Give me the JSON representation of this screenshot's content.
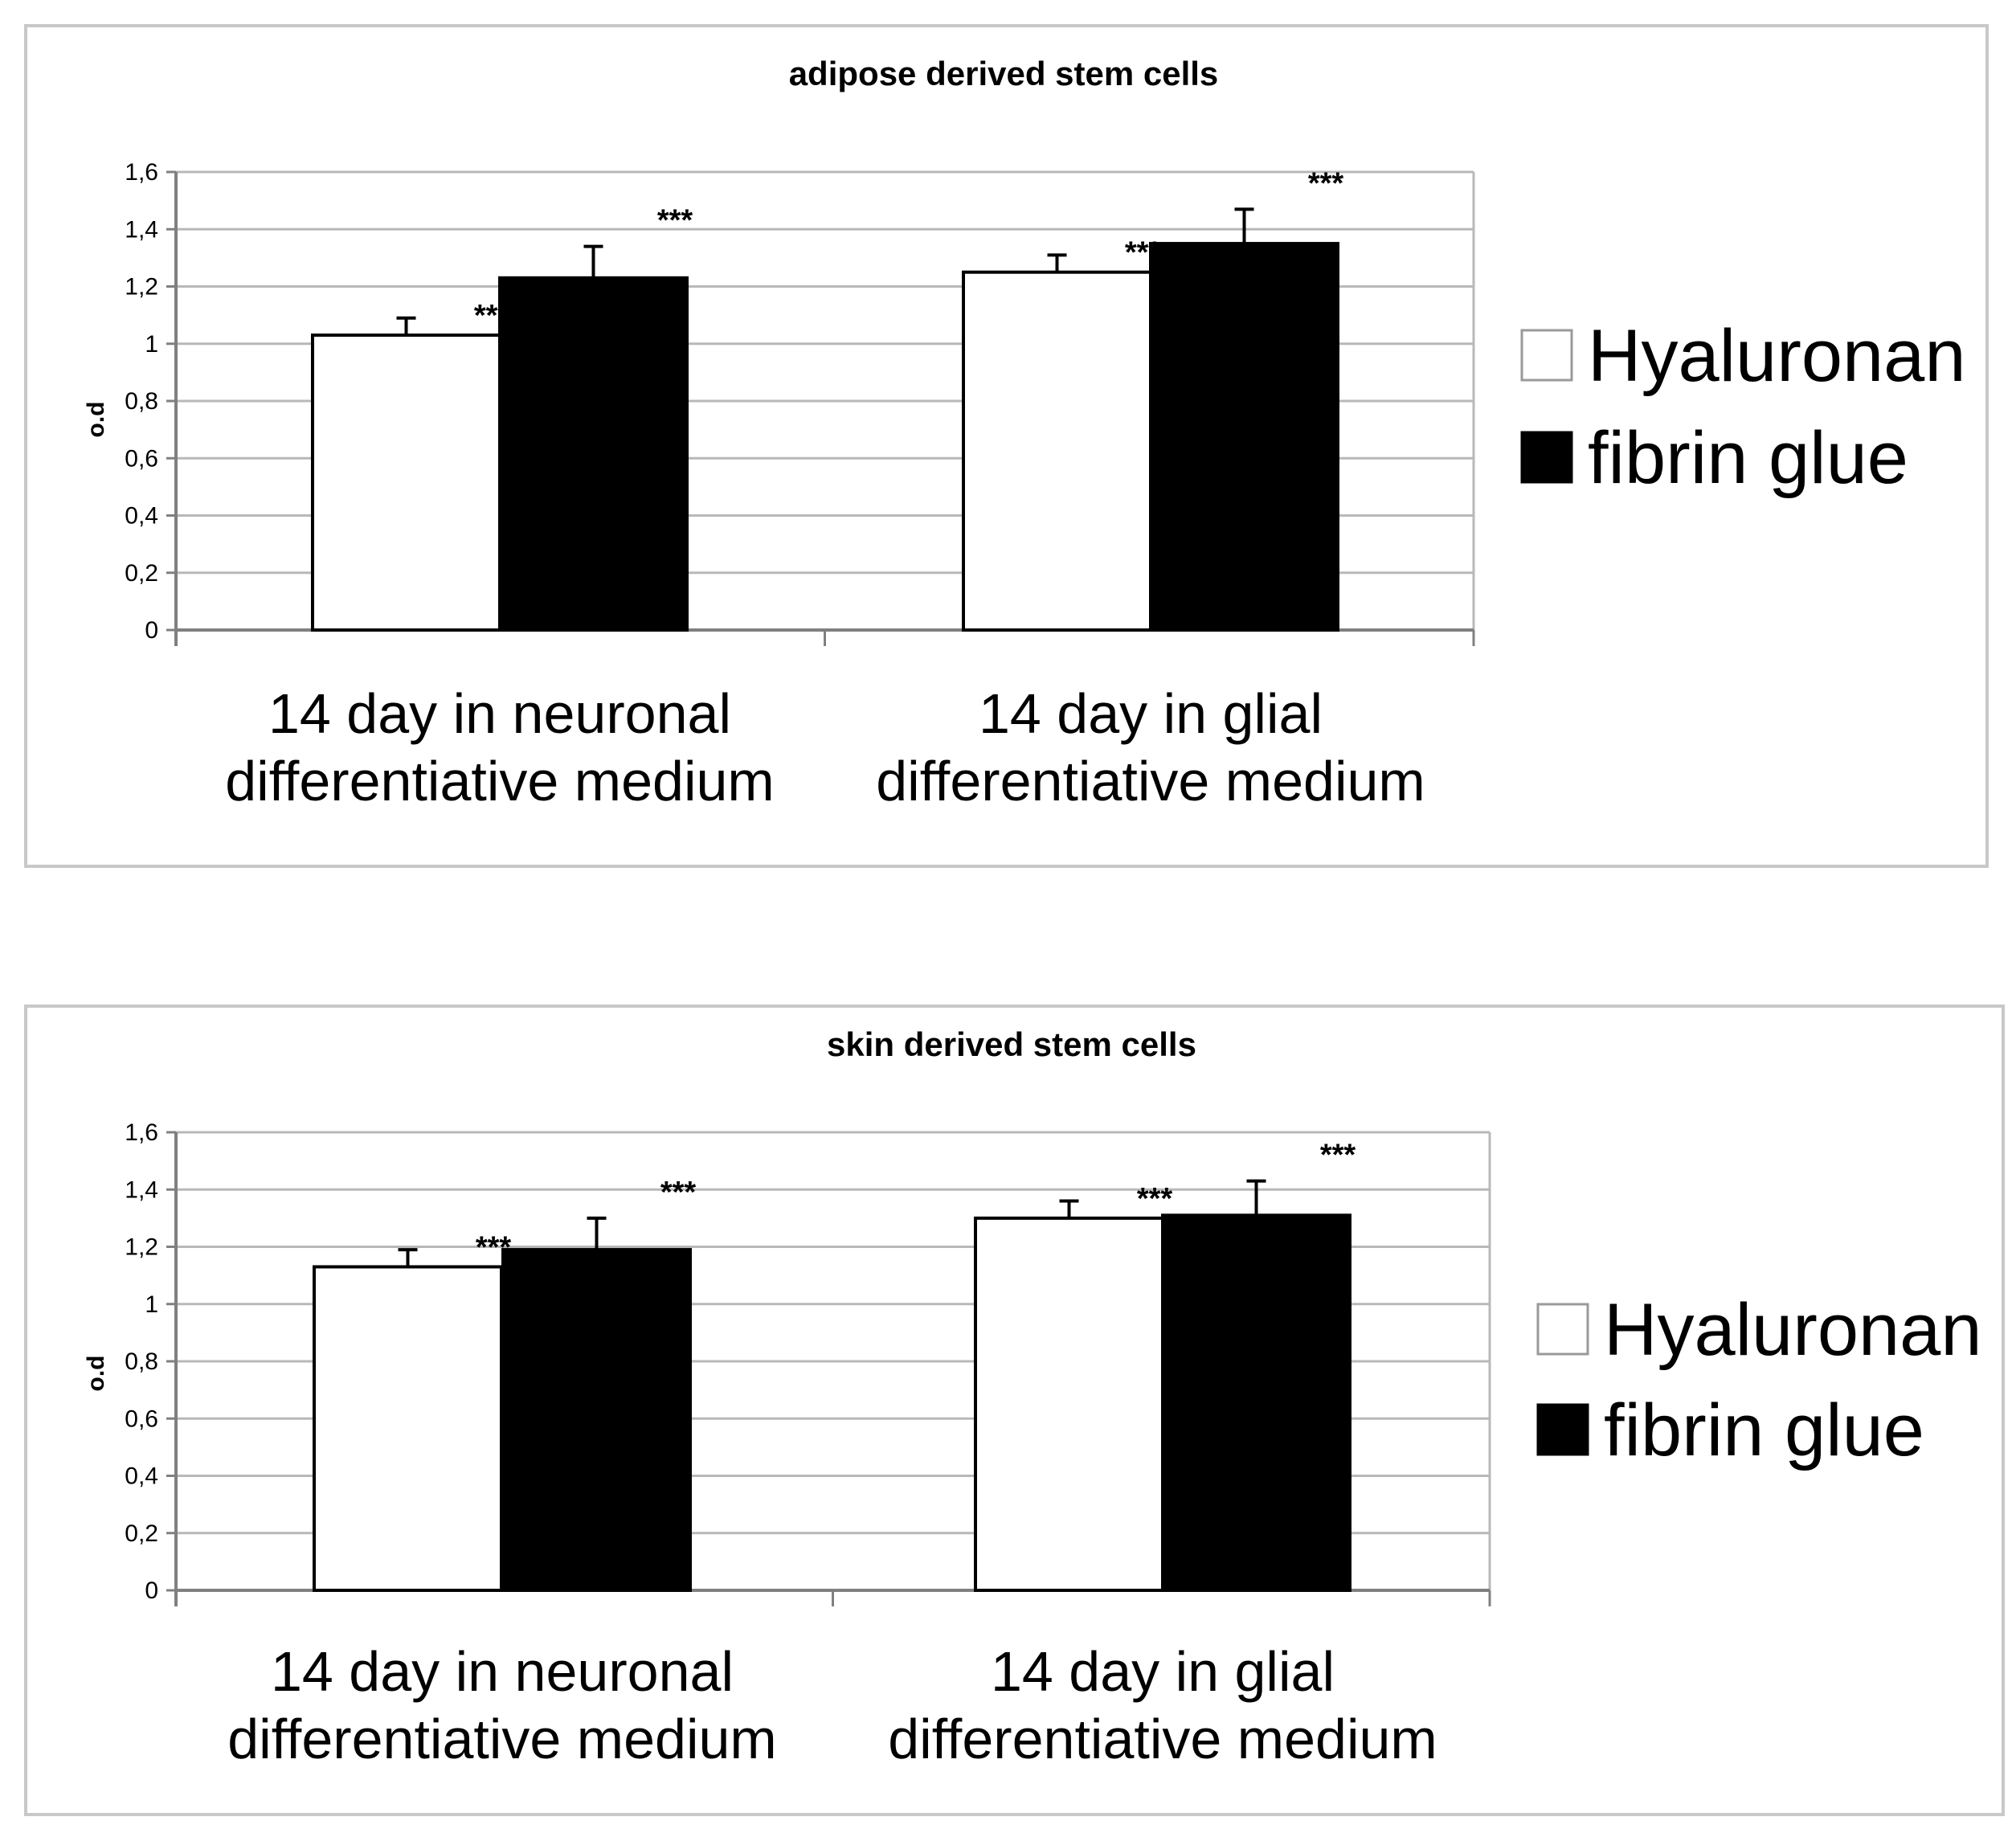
{
  "chart_data": [
    {
      "type": "bar",
      "title": "adipose derived stem cells",
      "ylabel": "o.d",
      "ylim": [
        0,
        1.6
      ],
      "yticks": [
        "0",
        "0,2",
        "0,4",
        "0,6",
        "0,8",
        "1",
        "1,2",
        "1,4",
        "1,6"
      ],
      "grid": true,
      "legend_position": "right",
      "categories": [
        [
          "14 day in neuronal",
          "differentiative medium"
        ],
        [
          "14 day in glial",
          "differentiative medium"
        ]
      ],
      "series": [
        {
          "name": "Hyaluronan",
          "color": "#ffffff",
          "values": [
            1.03,
            1.25
          ],
          "errors": [
            0.06,
            0.06
          ],
          "annotations": [
            "***",
            "***"
          ]
        },
        {
          "name": "fibrin glue",
          "color": "#000000",
          "values": [
            1.23,
            1.35
          ],
          "errors": [
            0.11,
            0.12
          ],
          "annotations": [
            "***",
            "***"
          ]
        }
      ]
    },
    {
      "type": "bar",
      "title": "skin derived stem cells",
      "ylabel": "o.d",
      "ylim": [
        0,
        1.6
      ],
      "yticks": [
        "0",
        "0,2",
        "0,4",
        "0,6",
        "0,8",
        "1",
        "1,2",
        "1,4",
        "1,6"
      ],
      "grid": true,
      "legend_position": "right",
      "categories": [
        [
          "14 day in neuronal",
          "differentiative medium"
        ],
        [
          "14 day in glial",
          "differentiative medium"
        ]
      ],
      "series": [
        {
          "name": "Hyaluronan",
          "color": "#ffffff",
          "values": [
            1.13,
            1.3
          ],
          "errors": [
            0.06,
            0.06
          ],
          "annotations": [
            "***",
            "***"
          ]
        },
        {
          "name": "fibrin glue",
          "color": "#000000",
          "values": [
            1.19,
            1.31
          ],
          "errors": [
            0.11,
            0.12
          ],
          "annotations": [
            "***",
            "***"
          ]
        }
      ]
    }
  ]
}
